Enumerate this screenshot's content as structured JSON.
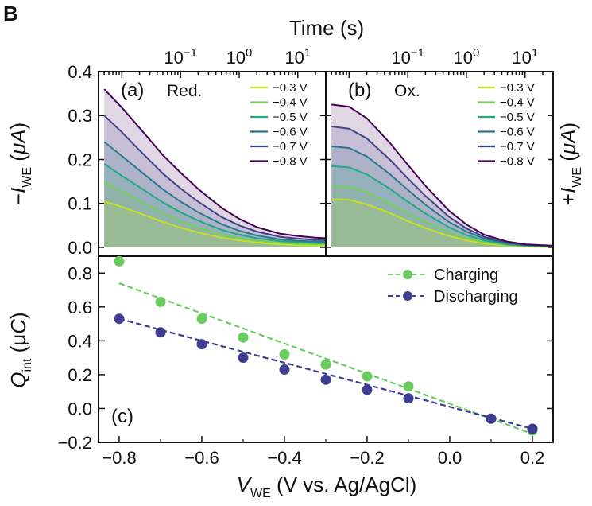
{
  "figure": {
    "panel_tag": "B",
    "top_axis_title": "Time (s)",
    "top_axis_ticks": [
      {
        "label": "10",
        "sup": "−1",
        "value": 0.1
      },
      {
        "label": "10",
        "sup": "0",
        "value": 1
      },
      {
        "label": "10",
        "sup": "1",
        "value": 10
      }
    ],
    "left_ylabel": {
      "prefix": "−",
      "italic": "I",
      "sub": "WE",
      "tail": " (",
      "tail_italic": "μA",
      "close": ")"
    },
    "right_ylabel": {
      "prefix": "+",
      "italic": "I",
      "sub": "WE",
      "tail": " (",
      "tail_italic": "μA",
      "close": ")"
    }
  },
  "colors": {
    "-0.3 V": "#c7e020",
    "-0.4 V": "#75d054",
    "-0.5 V": "#22a884",
    "-0.6 V": "#2a788e",
    "-0.7 V": "#414487",
    "-0.8 V": "#440154",
    "charging": "#6acb5e",
    "discharging": "#3d3d91"
  },
  "chart_data": [
    {
      "type": "line",
      "panel": "(a)",
      "title": "Red.",
      "x_scale": "log",
      "xlabel": "Time (s)",
      "xlim": [
        0.004,
        30
      ],
      "ylim": [
        -0.02,
        0.4
      ],
      "y_ticks": [
        0.0,
        0.1,
        0.2,
        0.3,
        0.4
      ],
      "ylabel": "−I_WE (μA)",
      "legend_position": "top-right",
      "x": [
        0.005,
        0.01,
        0.02,
        0.05,
        0.1,
        0.2,
        0.5,
        1,
        2,
        5,
        10,
        20,
        30
      ],
      "series": [
        {
          "name": "−0.3 V",
          "values": [
            0.105,
            0.092,
            0.078,
            0.058,
            0.045,
            0.034,
            0.022,
            0.016,
            0.011,
            0.007,
            0.005,
            0.004,
            0.004
          ]
        },
        {
          "name": "−0.4 V",
          "values": [
            0.15,
            0.128,
            0.105,
            0.078,
            0.06,
            0.045,
            0.029,
            0.021,
            0.015,
            0.01,
            0.008,
            0.007,
            0.007
          ]
        },
        {
          "name": "−0.5 V",
          "values": [
            0.19,
            0.163,
            0.137,
            0.102,
            0.08,
            0.061,
            0.04,
            0.029,
            0.021,
            0.014,
            0.012,
            0.01,
            0.01
          ]
        },
        {
          "name": "−0.6 V",
          "values": [
            0.24,
            0.208,
            0.175,
            0.132,
            0.104,
            0.08,
            0.053,
            0.038,
            0.027,
            0.018,
            0.015,
            0.013,
            0.013
          ]
        },
        {
          "name": "−0.7 V",
          "values": [
            0.3,
            0.262,
            0.221,
            0.168,
            0.134,
            0.104,
            0.069,
            0.05,
            0.036,
            0.024,
            0.02,
            0.017,
            0.017
          ]
        },
        {
          "name": "−0.8 V",
          "values": [
            0.36,
            0.318,
            0.272,
            0.21,
            0.17,
            0.133,
            0.09,
            0.065,
            0.046,
            0.031,
            0.026,
            0.022,
            0.021
          ]
        }
      ]
    },
    {
      "type": "line",
      "panel": "(b)",
      "title": "Ox.",
      "x_scale": "log",
      "xlabel": "Time (s)",
      "xlim": [
        0.004,
        30
      ],
      "ylim": [
        -0.02,
        0.4
      ],
      "ylabel": "+I_WE (μA)",
      "legend_position": "top-right",
      "x": [
        0.005,
        0.01,
        0.02,
        0.05,
        0.1,
        0.2,
        0.5,
        1,
        2,
        5,
        10,
        20,
        30
      ],
      "series": [
        {
          "name": "−0.3 V",
          "values": [
            0.11,
            0.108,
            0.098,
            0.078,
            0.06,
            0.044,
            0.026,
            0.016,
            0.009,
            0.004,
            0.002,
            0.001,
            0.001
          ]
        },
        {
          "name": "−0.4 V",
          "values": [
            0.14,
            0.138,
            0.126,
            0.1,
            0.078,
            0.058,
            0.034,
            0.021,
            0.012,
            0.005,
            0.003,
            0.002,
            0.002
          ]
        },
        {
          "name": "−0.5 V",
          "values": [
            0.185,
            0.182,
            0.166,
            0.133,
            0.104,
            0.077,
            0.046,
            0.028,
            0.016,
            0.007,
            0.004,
            0.002,
            0.002
          ]
        },
        {
          "name": "−0.6 V",
          "values": [
            0.23,
            0.226,
            0.207,
            0.166,
            0.131,
            0.097,
            0.058,
            0.036,
            0.02,
            0.009,
            0.005,
            0.003,
            0.003
          ]
        },
        {
          "name": "−0.7 V",
          "values": [
            0.275,
            0.27,
            0.248,
            0.199,
            0.157,
            0.117,
            0.07,
            0.043,
            0.024,
            0.011,
            0.006,
            0.004,
            0.003
          ]
        },
        {
          "name": "−0.8 V",
          "values": [
            0.325,
            0.32,
            0.294,
            0.237,
            0.188,
            0.14,
            0.084,
            0.052,
            0.029,
            0.013,
            0.007,
            0.005,
            0.004
          ]
        }
      ]
    },
    {
      "type": "scatter",
      "panel": "(c)",
      "xlabel": {
        "italic": "V",
        "sub": "WE",
        "tail": " (V vs. Ag/AgCl)"
      },
      "ylabel": {
        "italic": "Q",
        "sub": "int",
        "tail": " (μ",
        "tail_italic": "C",
        "close": ")"
      },
      "xlim": [
        -0.85,
        0.25
      ],
      "ylim": [
        -0.2,
        0.9
      ],
      "x_ticks": [
        -0.8,
        -0.6,
        -0.4,
        -0.2,
        0.0,
        0.2
      ],
      "x_tick_labels": [
        "−0.8",
        "−0.6",
        "−0.4",
        "−0.2",
        "0.0",
        "0.2"
      ],
      "y_ticks": [
        -0.2,
        0.0,
        0.2,
        0.4,
        0.6,
        0.8
      ],
      "y_tick_labels": [
        "−0.2",
        "0.0",
        "0.2",
        "0.4",
        "0.6",
        "0.8"
      ],
      "legend_position": "top-right",
      "series": [
        {
          "name": "Charging",
          "x": [
            -0.8,
            -0.7,
            -0.6,
            -0.5,
            -0.4,
            -0.3,
            -0.2,
            -0.1,
            0.1,
            0.2
          ],
          "values": [
            0.87,
            0.63,
            0.53,
            0.42,
            0.32,
            0.26,
            0.19,
            0.13,
            -0.06,
            -0.13
          ],
          "fit": {
            "x": [
              -0.8,
              0.2
            ],
            "y": [
              0.74,
              -0.15
            ]
          }
        },
        {
          "name": "Discharging",
          "x": [
            -0.8,
            -0.7,
            -0.6,
            -0.5,
            -0.4,
            -0.3,
            -0.2,
            -0.1,
            0.1,
            0.2
          ],
          "values": [
            0.53,
            0.45,
            0.38,
            0.3,
            0.23,
            0.17,
            0.11,
            0.06,
            -0.06,
            -0.12
          ],
          "fit": {
            "x": [
              -0.8,
              0.2
            ],
            "y": [
              0.53,
              -0.12
            ]
          }
        }
      ]
    }
  ]
}
